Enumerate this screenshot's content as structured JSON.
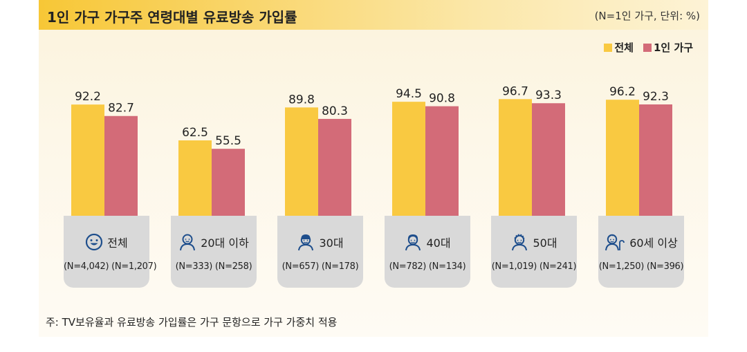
{
  "title": "1인 가구 가구주 연령대별 유료방송 가입률",
  "unit_note": "(N=1인 가구, 단위: %)",
  "footnote": "주: TV보유율과 유료방송 가입률은 가구 문항으로 가구 가중치 적용",
  "legend": [
    {
      "label": "전체",
      "color": "#f9c941"
    },
    {
      "label": "1인 가구",
      "color": "#d36b78"
    }
  ],
  "categories": [
    {
      "label": "전체",
      "icon": "smiley-icon",
      "n_total": "(N=4,042)",
      "n_single": "(N=1,207)"
    },
    {
      "label": "20대 이하",
      "icon": "young-person-icon",
      "n_total": "(N=333)",
      "n_single": "(N=258)"
    },
    {
      "label": "30대",
      "icon": "person-30s-icon",
      "n_total": "(N=657)",
      "n_single": "(N=178)"
    },
    {
      "label": "40대",
      "icon": "person-40s-icon",
      "n_total": "(N=782)",
      "n_single": "(N=134)"
    },
    {
      "label": "50대",
      "icon": "person-50s-icon",
      "n_total": "(N=1,019)",
      "n_single": "(N=241)"
    },
    {
      "label": "60세 이상",
      "icon": "elderly-person-icon",
      "n_total": "(N=1,250)",
      "n_single": "(N=396)"
    }
  ],
  "chart_data": {
    "type": "bar",
    "title": "1인 가구 가구주 연령대별 유료방송 가입률",
    "categories": [
      "전체",
      "20대 이하",
      "30대",
      "40대",
      "50대",
      "60세 이상"
    ],
    "series": [
      {
        "name": "전체",
        "values": [
          92.2,
          62.5,
          89.8,
          94.5,
          96.7,
          96.2
        ]
      },
      {
        "name": "1인 가구",
        "values": [
          82.7,
          55.5,
          80.3,
          90.8,
          93.3,
          92.3
        ]
      }
    ],
    "ylim": [
      0,
      100
    ],
    "grid": false,
    "legend_position": "top-right",
    "data_labels": true
  }
}
